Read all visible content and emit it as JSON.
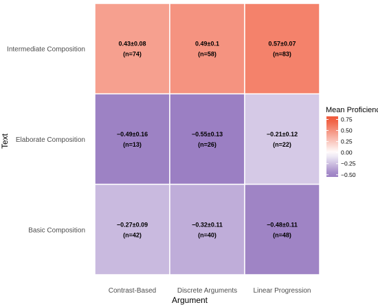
{
  "chart_data": {
    "type": "heatmap",
    "xlabel": "Argument",
    "ylabel": "Text",
    "x_categories": [
      "Contrast-Based",
      "Discrete Arguments",
      "Linear Progression"
    ],
    "y_categories": [
      "Intermediate Composition",
      "Elaborate Composition",
      "Basic Composition"
    ],
    "cells": [
      {
        "x": "Contrast-Based",
        "y": "Intermediate Composition",
        "value": 0.43,
        "label": "0.43±0.08",
        "n_label": "(n=74)"
      },
      {
        "x": "Discrete Arguments",
        "y": "Intermediate Composition",
        "value": 0.49,
        "label": "0.49±0.1",
        "n_label": "(n=58)"
      },
      {
        "x": "Linear Progression",
        "y": "Intermediate Composition",
        "value": 0.57,
        "label": "0.57±0.07",
        "n_label": "(n=83)"
      },
      {
        "x": "Contrast-Based",
        "y": "Elaborate Composition",
        "value": -0.49,
        "label": "−0.49±0.16",
        "n_label": "(n=13)"
      },
      {
        "x": "Discrete Arguments",
        "y": "Elaborate Composition",
        "value": -0.55,
        "label": "−0.55±0.13",
        "n_label": "(n=26)"
      },
      {
        "x": "Linear Progression",
        "y": "Elaborate Composition",
        "value": -0.21,
        "label": "−0.21±0.12",
        "n_label": "(n=22)"
      },
      {
        "x": "Contrast-Based",
        "y": "Basic Composition",
        "value": -0.27,
        "label": "−0.27±0.09",
        "n_label": "(n=42)"
      },
      {
        "x": "Discrete Arguments",
        "y": "Basic Composition",
        "value": -0.32,
        "label": "−0.32±0.11",
        "n_label": "(n=40)"
      },
      {
        "x": "Linear Progression",
        "y": "Basic Composition",
        "value": -0.48,
        "label": "−0.48±0.11",
        "n_label": "(n=48)"
      }
    ],
    "legend": {
      "title": "Mean Proficiency",
      "placement": "right",
      "ticks": [
        0.75,
        0.5,
        0.25,
        0.0,
        -0.25,
        -0.5
      ],
      "tick_labels": [
        "0.75",
        "0.50",
        "0.25",
        "0.00",
        "−0.25",
        "−0.50"
      ],
      "range": [
        -0.55,
        0.82
      ]
    },
    "colors": {
      "low": "#9b7fc3",
      "mid": "#ffffff",
      "high": "#f05a3c",
      "out_of_range": "#7f7f7f"
    },
    "grid": false
  }
}
